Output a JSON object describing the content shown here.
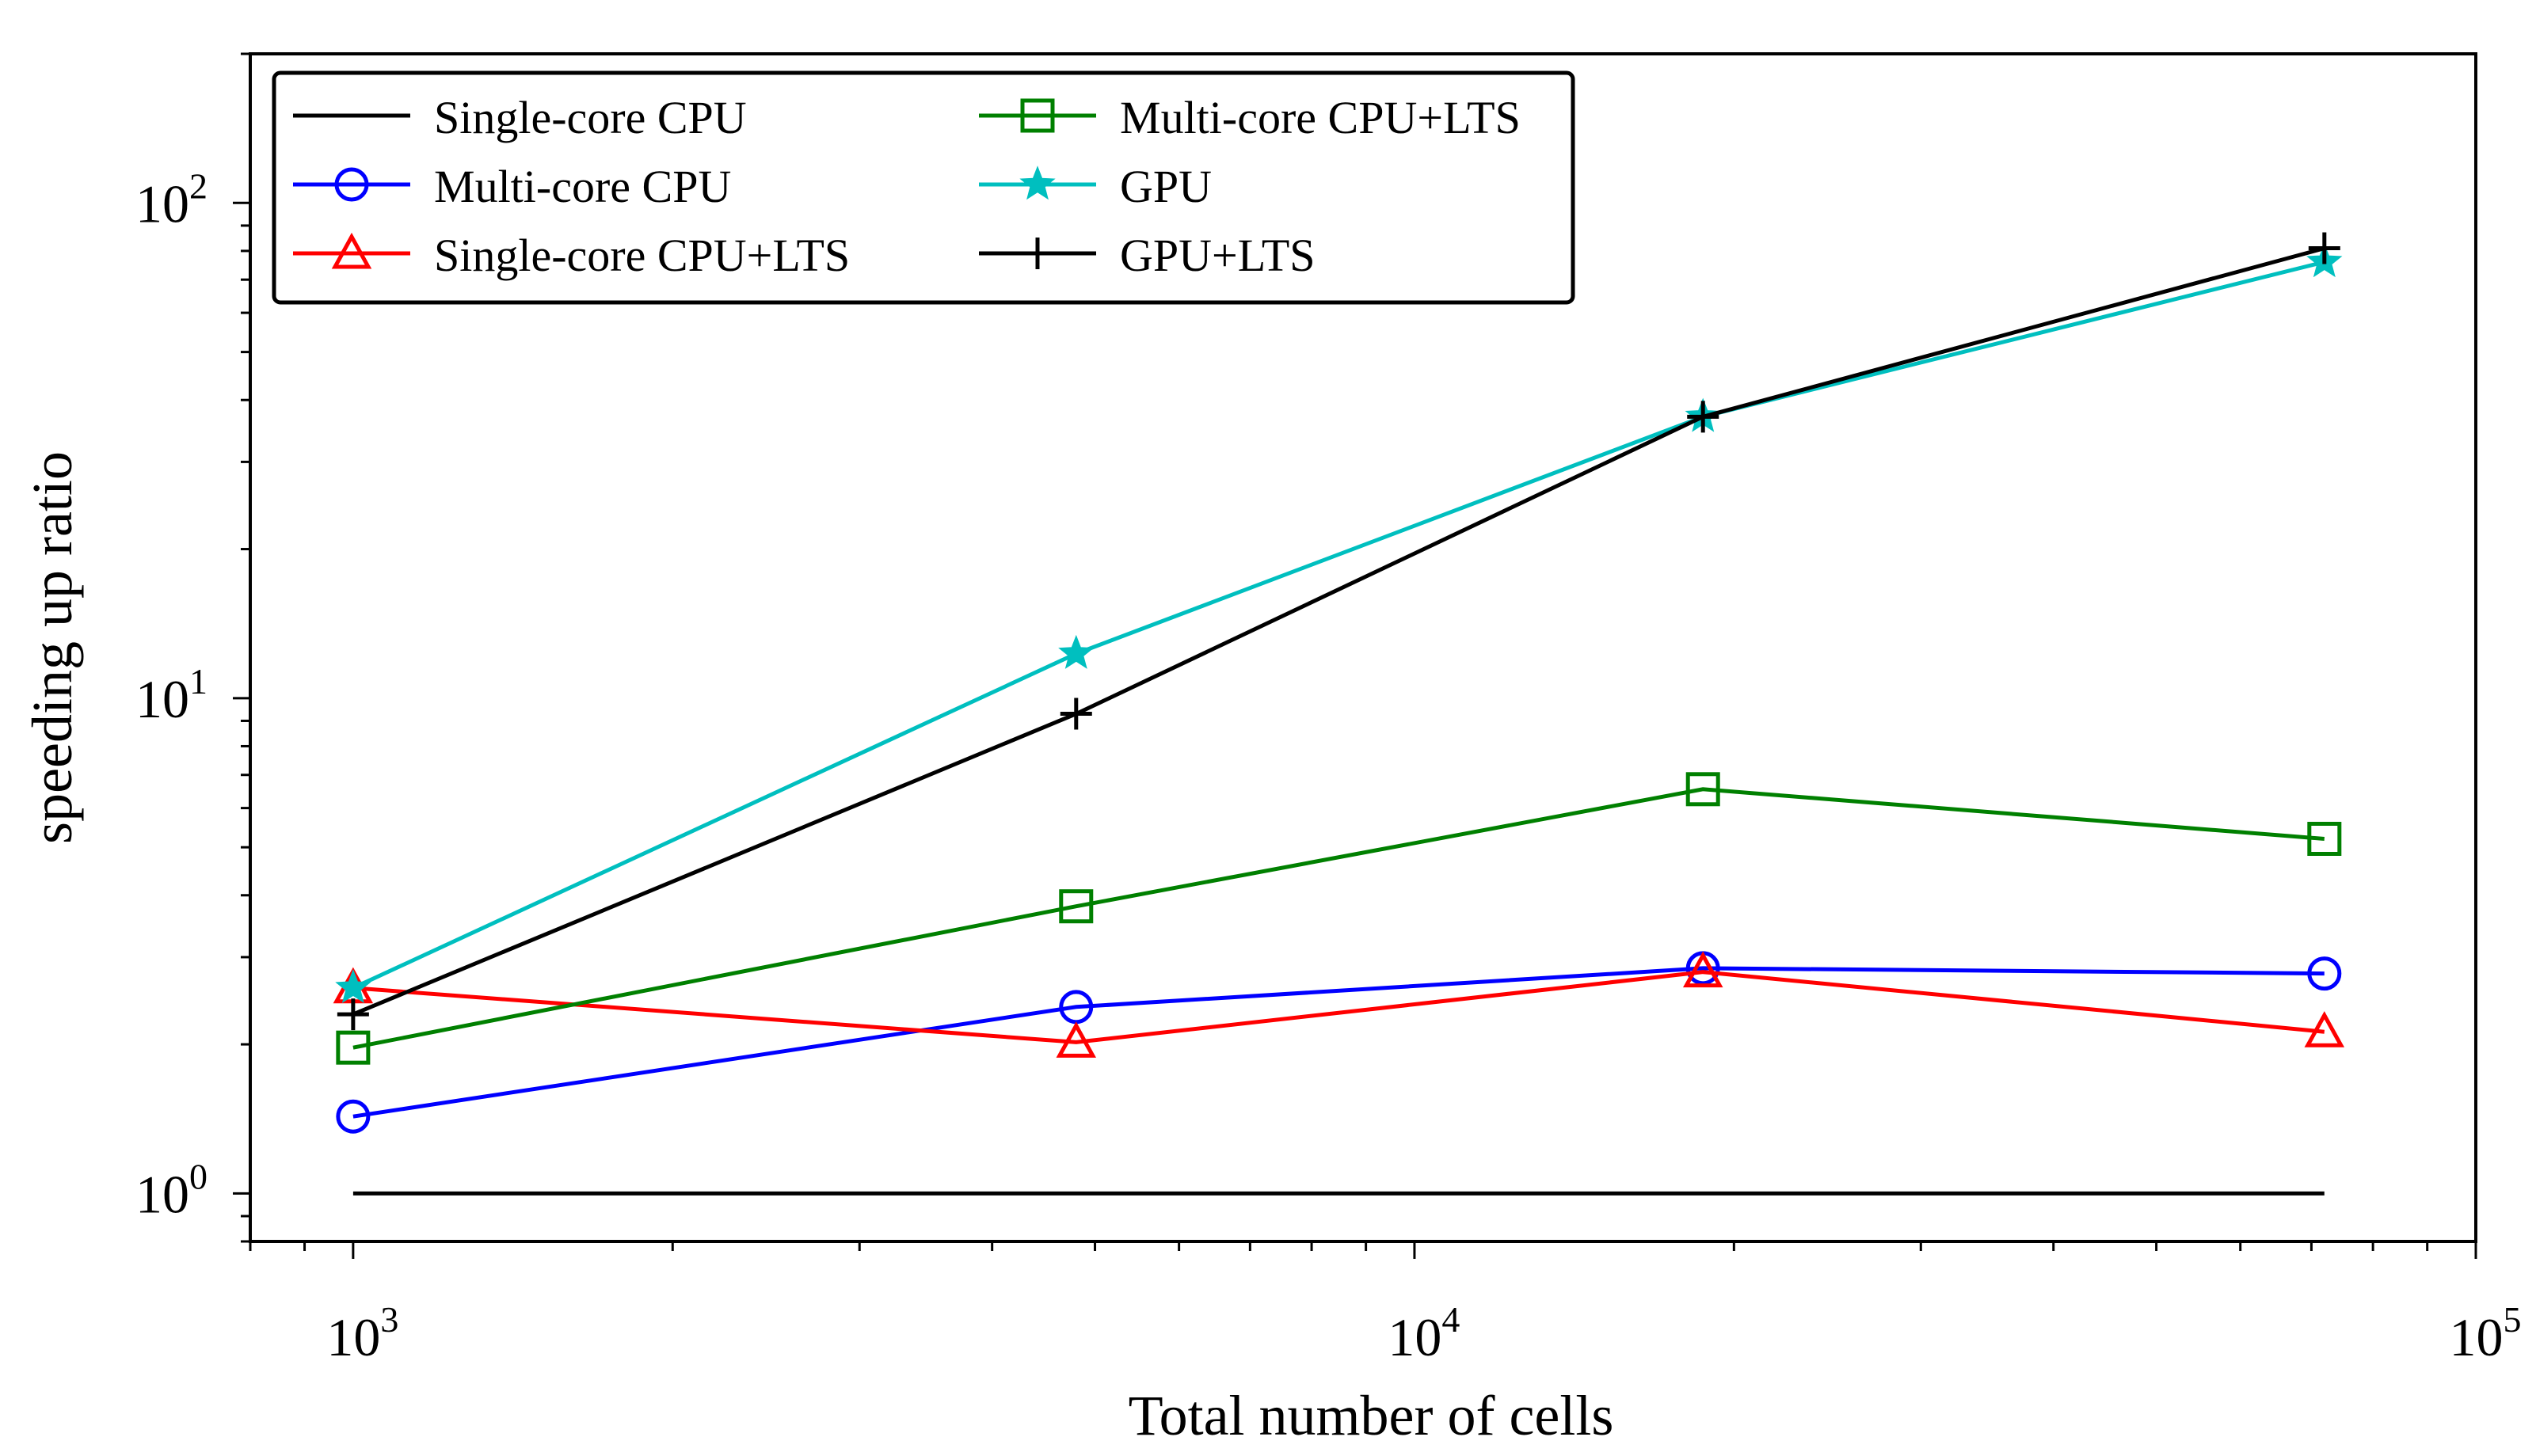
{
  "chart_data": {
    "type": "line",
    "title": "",
    "xlabel": "Total number of cells",
    "ylabel": "speeding up ratio",
    "xscale": "log",
    "yscale": "log",
    "xlim": [
      800,
      100000
    ],
    "ylim": [
      0.8,
      200
    ],
    "x": [
      1000,
      4800,
      18700,
      72000
    ],
    "x_ticks": [
      {
        "value": 1000,
        "base": "10",
        "exp": "3"
      },
      {
        "value": 10000,
        "base": "10",
        "exp": "4"
      },
      {
        "value": 100000,
        "base": "10",
        "exp": "5"
      }
    ],
    "y_ticks": [
      {
        "value": 1,
        "base": "10",
        "exp": "0"
      },
      {
        "value": 10,
        "base": "10",
        "exp": "1"
      },
      {
        "value": 100,
        "base": "10",
        "exp": "2"
      }
    ],
    "legend_position": "top-left",
    "series": [
      {
        "name": "Single-core CPU",
        "values": [
          1.0,
          1.0,
          1.0,
          1.0
        ],
        "color": "#000000",
        "marker": "none"
      },
      {
        "name": "Multi-core CPU",
        "values": [
          1.43,
          2.38,
          2.85,
          2.78
        ],
        "color": "#0000ff",
        "marker": "circle"
      },
      {
        "name": "Single-core CPU+LTS",
        "values": [
          2.6,
          2.02,
          2.8,
          2.12
        ],
        "color": "#ff0000",
        "marker": "triangle"
      },
      {
        "name": "Multi-core CPU+LTS",
        "values": [
          1.97,
          3.8,
          6.55,
          5.2
        ],
        "color": "#008000",
        "marker": "square"
      },
      {
        "name": "GPU",
        "values": [
          2.6,
          12.3,
          37.0,
          76.0
        ],
        "color": "#00bfbf",
        "marker": "star"
      },
      {
        "name": "GPU+LTS",
        "values": [
          2.3,
          9.3,
          37.0,
          81.0
        ],
        "color": "#000000",
        "marker": "plus"
      }
    ]
  }
}
